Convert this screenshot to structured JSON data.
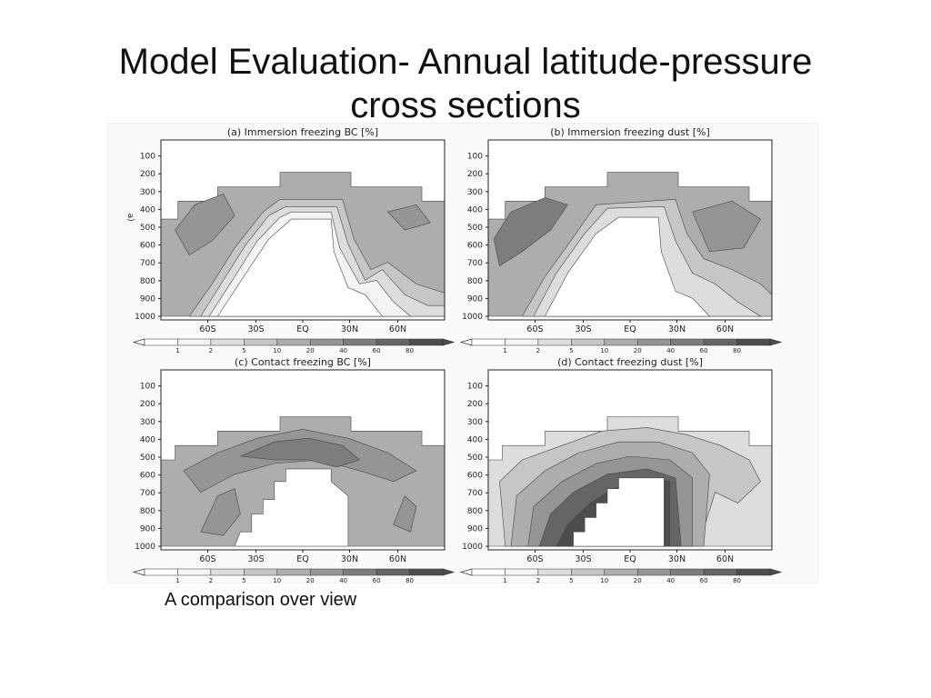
{
  "slide": {
    "title_line1": "Model Evaluation- Annual latitude-pressure",
    "title_line2": "cross sections",
    "caption": "A comparison over view"
  },
  "chart_data": [
    {
      "type": "heatmap",
      "title": "(a) Immersion freezing BC [%]",
      "x_ticks": [
        "60S",
        "30S",
        "EQ",
        "30N",
        "60N"
      ],
      "y_ticks": [
        "100",
        "200",
        "300",
        "400",
        "500",
        "600",
        "700",
        "800",
        "900",
        "1000"
      ],
      "ylabel": "a)",
      "colorbar_ticks": [
        "1",
        "2",
        "5",
        "10",
        "20",
        "40",
        "60",
        "80"
      ]
    },
    {
      "type": "heatmap",
      "title": "(b) Immersion freezing dust [%]",
      "x_ticks": [
        "60S",
        "30S",
        "EQ",
        "30N",
        "60N"
      ],
      "y_ticks": [
        "100",
        "200",
        "300",
        "400",
        "500",
        "600",
        "700",
        "800",
        "900",
        "1000"
      ],
      "colorbar_ticks": [
        "1",
        "2",
        "5",
        "10",
        "20",
        "40",
        "60",
        "80"
      ]
    },
    {
      "type": "heatmap",
      "title": "(c) Contact freezing BC [%]",
      "x_ticks": [
        "60S",
        "30S",
        "EQ",
        "30N",
        "60N"
      ],
      "y_ticks": [
        "100",
        "200",
        "300",
        "400",
        "500",
        "600",
        "700",
        "800",
        "900",
        "1000"
      ],
      "colorbar_ticks": [
        "1",
        "2",
        "5",
        "10",
        "20",
        "40",
        "60",
        "80"
      ]
    },
    {
      "type": "heatmap",
      "title": "(d) Contact freezing dust [%]",
      "x_ticks": [
        "60S",
        "30S",
        "EQ",
        "30N",
        "60N"
      ],
      "y_ticks": [
        "100",
        "200",
        "300",
        "400",
        "500",
        "600",
        "700",
        "800",
        "900",
        "1000"
      ],
      "colorbar_ticks": [
        "1",
        "2",
        "5",
        "10",
        "20",
        "40",
        "60",
        "80"
      ]
    }
  ],
  "colors": {
    "levels": [
      "#f4f4f4",
      "#dddddd",
      "#c6c6c6",
      "#adadad",
      "#959595",
      "#7d7d7d",
      "#656565",
      "#4d4d4d"
    ]
  }
}
